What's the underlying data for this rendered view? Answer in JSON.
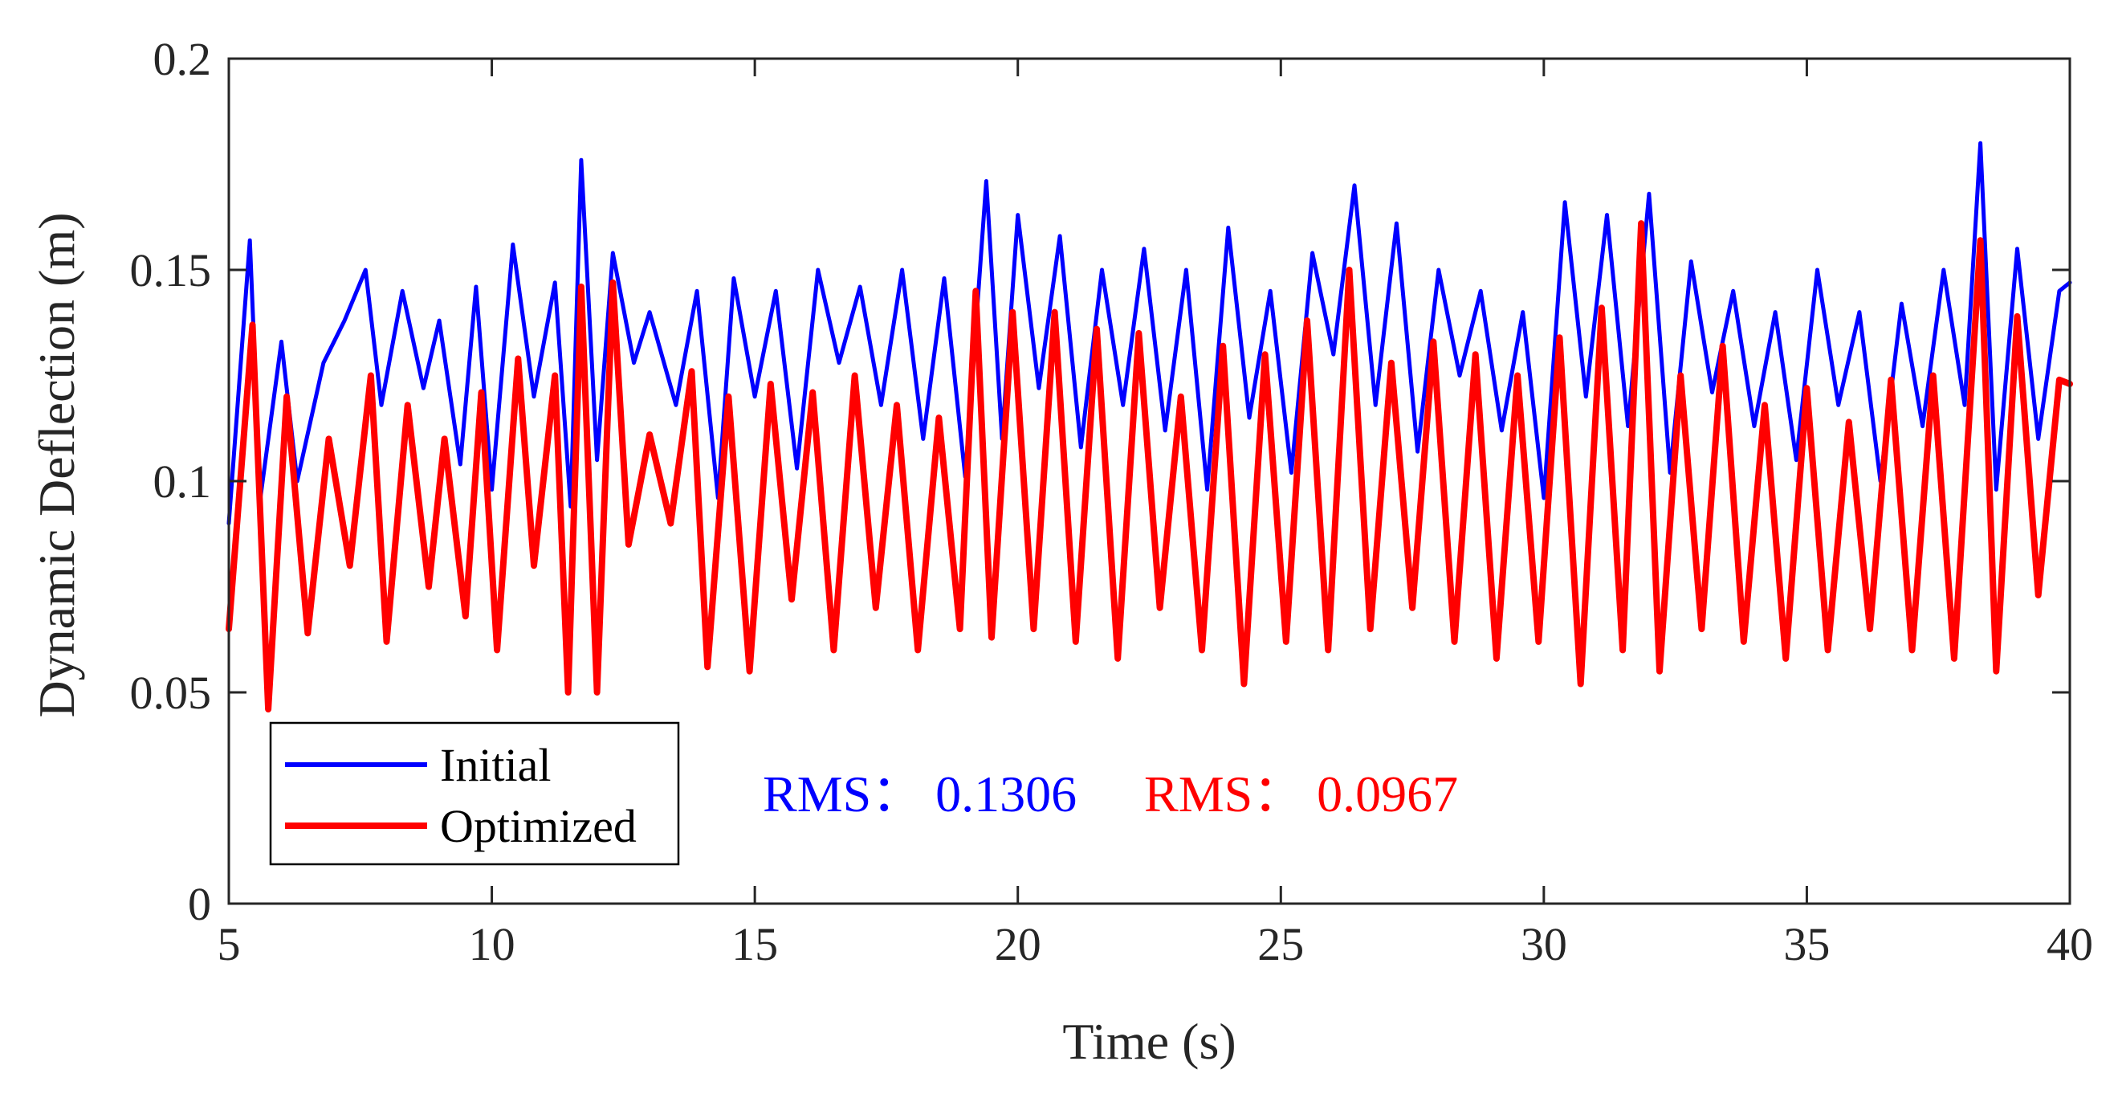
{
  "chart_data": {
    "type": "line",
    "title": "",
    "xlabel": "Time (s)",
    "ylabel": "Dynamic Deflection (m)",
    "xlim": [
      5,
      40
    ],
    "ylim": [
      0,
      0.2
    ],
    "xticks": [
      5,
      10,
      15,
      20,
      25,
      30,
      35,
      40
    ],
    "xtick_labels": [
      "5",
      "10",
      "15",
      "20",
      "25",
      "30",
      "35",
      "40"
    ],
    "yticks": [
      0,
      0.05,
      0.1,
      0.15,
      0.2
    ],
    "ytick_labels": [
      "0",
      "0.05",
      "0.1",
      "0.15",
      "0.2"
    ],
    "grid": false,
    "legend": {
      "position": "bottom-left",
      "entries": [
        "Initial",
        "Optimized"
      ]
    },
    "series": [
      {
        "name": "Initial",
        "color": "#0000ff",
        "x": [
          5.0,
          5.4,
          5.6,
          6.0,
          6.3,
          6.8,
          7.2,
          7.6,
          7.9,
          8.3,
          8.7,
          9.0,
          9.4,
          9.7,
          10.0,
          10.4,
          10.8,
          11.2,
          11.5,
          11.7,
          12.0,
          12.3,
          12.7,
          13.0,
          13.5,
          13.9,
          14.3,
          14.6,
          15.0,
          15.4,
          15.8,
          16.2,
          16.6,
          17.0,
          17.4,
          17.8,
          18.2,
          18.6,
          19.0,
          19.4,
          19.7,
          20.0,
          20.4,
          20.8,
          21.2,
          21.6,
          22.0,
          22.4,
          22.8,
          23.2,
          23.6,
          24.0,
          24.4,
          24.8,
          25.2,
          25.6,
          26.0,
          26.4,
          26.8,
          27.2,
          27.6,
          28.0,
          28.4,
          28.8,
          29.2,
          29.6,
          30.0,
          30.4,
          30.8,
          31.2,
          31.6,
          32.0,
          32.4,
          32.8,
          33.2,
          33.6,
          34.0,
          34.4,
          34.8,
          35.2,
          35.6,
          36.0,
          36.4,
          36.8,
          37.2,
          37.6,
          38.0,
          38.3,
          38.6,
          39.0,
          39.4,
          39.8,
          40.0
        ],
        "y": [
          0.09,
          0.157,
          0.096,
          0.133,
          0.1,
          0.128,
          0.138,
          0.15,
          0.118,
          0.145,
          0.122,
          0.138,
          0.104,
          0.146,
          0.098,
          0.156,
          0.12,
          0.147,
          0.094,
          0.176,
          0.105,
          0.154,
          0.128,
          0.14,
          0.118,
          0.145,
          0.096,
          0.148,
          0.12,
          0.145,
          0.103,
          0.15,
          0.128,
          0.146,
          0.118,
          0.15,
          0.11,
          0.148,
          0.101,
          0.171,
          0.11,
          0.163,
          0.122,
          0.158,
          0.108,
          0.15,
          0.118,
          0.155,
          0.112,
          0.15,
          0.098,
          0.16,
          0.115,
          0.145,
          0.102,
          0.154,
          0.13,
          0.17,
          0.118,
          0.161,
          0.107,
          0.15,
          0.125,
          0.145,
          0.112,
          0.14,
          0.096,
          0.166,
          0.12,
          0.163,
          0.113,
          0.168,
          0.102,
          0.152,
          0.121,
          0.145,
          0.113,
          0.14,
          0.105,
          0.15,
          0.118,
          0.14,
          0.1,
          0.142,
          0.113,
          0.15,
          0.118,
          0.18,
          0.098,
          0.155,
          0.11,
          0.145,
          0.147
        ]
      },
      {
        "name": "Optimized",
        "color": "#ff0000",
        "x": [
          5.0,
          5.45,
          5.75,
          6.1,
          6.5,
          6.9,
          7.3,
          7.7,
          8.0,
          8.4,
          8.8,
          9.1,
          9.5,
          9.8,
          10.1,
          10.5,
          10.8,
          11.2,
          11.45,
          11.7,
          12.0,
          12.3,
          12.6,
          13.0,
          13.4,
          13.8,
          14.1,
          14.5,
          14.9,
          15.3,
          15.7,
          16.1,
          16.5,
          16.9,
          17.3,
          17.7,
          18.1,
          18.5,
          18.9,
          19.2,
          19.5,
          19.9,
          20.3,
          20.7,
          21.1,
          21.5,
          21.9,
          22.3,
          22.7,
          23.1,
          23.5,
          23.9,
          24.3,
          24.7,
          25.1,
          25.5,
          25.9,
          26.3,
          26.7,
          27.1,
          27.5,
          27.9,
          28.3,
          28.7,
          29.1,
          29.5,
          29.9,
          30.3,
          30.7,
          31.1,
          31.5,
          31.85,
          32.2,
          32.6,
          33.0,
          33.4,
          33.8,
          34.2,
          34.6,
          35.0,
          35.4,
          35.8,
          36.2,
          36.6,
          37.0,
          37.4,
          37.8,
          38.3,
          38.6,
          39.0,
          39.4,
          39.8,
          40.0
        ],
        "y": [
          0.065,
          0.137,
          0.046,
          0.12,
          0.064,
          0.11,
          0.08,
          0.125,
          0.062,
          0.118,
          0.075,
          0.11,
          0.068,
          0.121,
          0.06,
          0.129,
          0.08,
          0.125,
          0.05,
          0.146,
          0.05,
          0.147,
          0.085,
          0.111,
          0.09,
          0.126,
          0.056,
          0.12,
          0.055,
          0.123,
          0.072,
          0.121,
          0.06,
          0.125,
          0.07,
          0.118,
          0.06,
          0.115,
          0.065,
          0.145,
          0.063,
          0.14,
          0.065,
          0.14,
          0.062,
          0.136,
          0.058,
          0.135,
          0.07,
          0.12,
          0.06,
          0.132,
          0.052,
          0.13,
          0.062,
          0.138,
          0.06,
          0.15,
          0.065,
          0.128,
          0.07,
          0.133,
          0.062,
          0.13,
          0.058,
          0.125,
          0.062,
          0.134,
          0.052,
          0.141,
          0.06,
          0.161,
          0.055,
          0.125,
          0.065,
          0.132,
          0.062,
          0.118,
          0.058,
          0.122,
          0.06,
          0.114,
          0.065,
          0.124,
          0.06,
          0.125,
          0.058,
          0.157,
          0.055,
          0.139,
          0.073,
          0.124,
          0.123
        ]
      }
    ],
    "annotations": [
      {
        "text": "RMS： 0.1306",
        "color": "#0000ff"
      },
      {
        "text": "RMS： 0.0967",
        "color": "#ff0000"
      }
    ]
  }
}
